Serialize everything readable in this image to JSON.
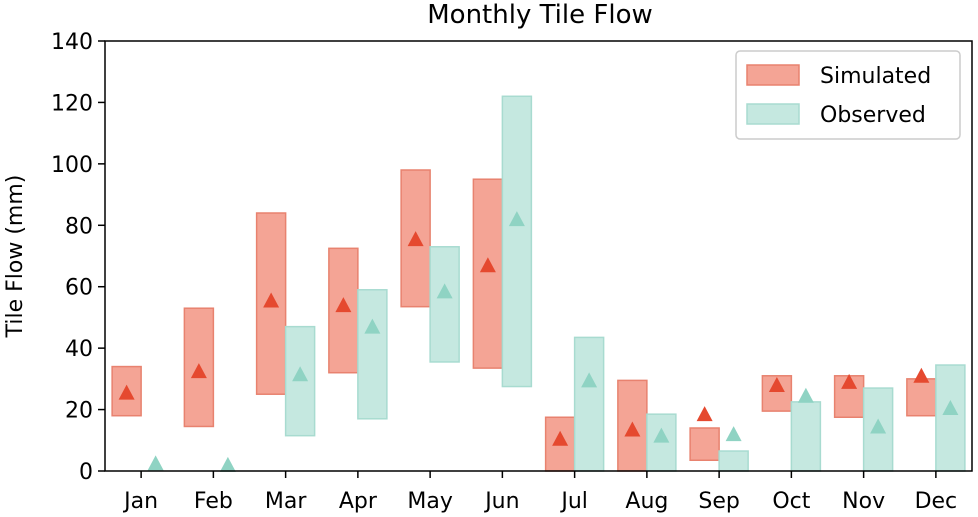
{
  "chart_data": {
    "type": "bar",
    "subtype": "range-bar with mean markers",
    "title": "Monthly Tile Flow",
    "xlabel": "",
    "ylabel": "Tile Flow (mm)",
    "ylim": [
      0,
      140
    ],
    "yticks": [
      "0",
      "20",
      "40",
      "60",
      "80",
      "100",
      "120",
      "140"
    ],
    "categories": [
      "Jan",
      "Feb",
      "Mar",
      "Apr",
      "May",
      "Jun",
      "Jul",
      "Aug",
      "Sep",
      "Oct",
      "Nov",
      "Dec"
    ],
    "grid": false,
    "legend_position": "top-right",
    "series": [
      {
        "name": "Simulated",
        "color": "#f4a495",
        "edge_color": "#e8826f",
        "marker_color": "#e5492f",
        "min": [
          18,
          14.5,
          25,
          32,
          53.5,
          33.5,
          0,
          0,
          3.5,
          19.5,
          17.5,
          18
        ],
        "max": [
          34,
          53,
          84,
          72.5,
          98,
          95,
          17.5,
          29.5,
          14,
          31,
          31,
          30
        ],
        "marker": [
          25.5,
          32.5,
          55.5,
          54,
          75.5,
          67,
          10.5,
          13.5,
          18.5,
          28,
          29,
          31
        ]
      },
      {
        "name": "Observed",
        "color": "#c5e8e0",
        "edge_color": "#a8dbd0",
        "marker_color": "#8fd3c3",
        "min": [
          0,
          0,
          11.5,
          17,
          35.5,
          27.5,
          0,
          0,
          0,
          0,
          0,
          0
        ],
        "max": [
          0,
          0,
          47,
          59,
          73,
          122,
          43.5,
          18.5,
          6.5,
          22.5,
          27,
          34.5
        ],
        "marker": [
          2.5,
          2,
          31.5,
          47,
          58.5,
          82,
          29.5,
          11.5,
          12,
          24.5,
          14.5,
          20.5
        ]
      }
    ]
  }
}
